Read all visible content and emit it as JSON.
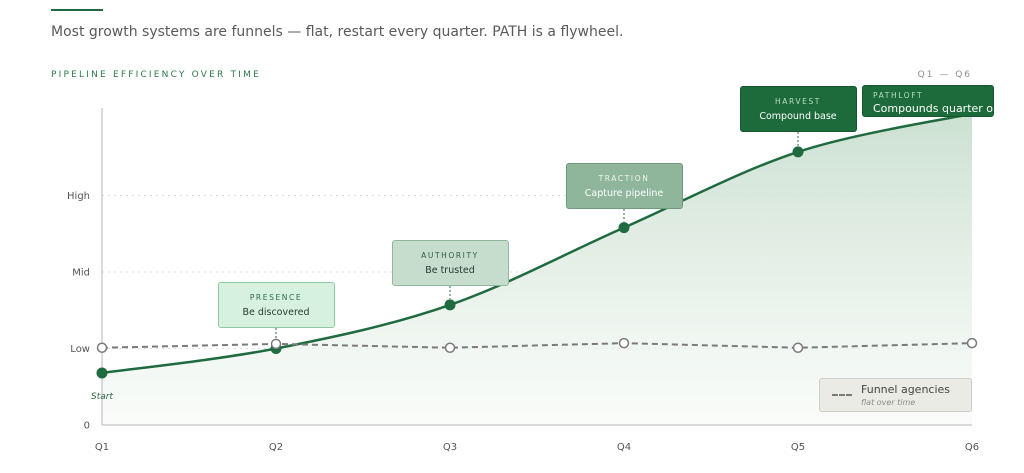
{
  "intro": "Most growth systems are funnels — flat, restart every quarter. PATH is a flywheel.",
  "colors": {
    "accent": "#1f6b3f",
    "flywheel": "#1f6b3f",
    "funnel": "#7a7a7a",
    "area": "#d3e5d8"
  },
  "chart_data": {
    "type": "line",
    "title": "PIPELINE EFFICIENCY OVER TIME",
    "range_label": "Q1 — Q6",
    "categories": [
      "Q1",
      "Q2",
      "Q3",
      "Q4",
      "Q5",
      "Q6"
    ],
    "y_ticks": [
      {
        "label": "0",
        "value": 0
      },
      {
        "label": "Low",
        "value": 1
      },
      {
        "label": "Mid",
        "value": 2
      },
      {
        "label": "High",
        "value": 3
      }
    ],
    "ylim": [
      0,
      3.5
    ],
    "grid": true,
    "start_label": "Start",
    "series": [
      {
        "key": "flywheel",
        "values": [
          0.68,
          1.0,
          1.57,
          2.58,
          3.57,
          4.07
        ],
        "style": "solid",
        "area": true,
        "markers": [
          "filled",
          "filled",
          "filled",
          "filled",
          "filled",
          "none"
        ]
      },
      {
        "key": "funnel",
        "name": "Funnel agencies",
        "note": "flat over time",
        "values": [
          1.01,
          1.06,
          1.01,
          1.07,
          1.01,
          1.07
        ],
        "style": "dashed",
        "markers": [
          "hollow",
          "hollow",
          "hollow",
          "hollow",
          "hollow",
          "hollow"
        ]
      }
    ],
    "annotations": [
      {
        "stage": "PRESENCE",
        "text": "Be discovered",
        "category": "Q2"
      },
      {
        "stage": "AUTHORITY",
        "text": "Be trusted",
        "category": "Q3"
      },
      {
        "stage": "TRACTION",
        "text": "Capture pipeline",
        "category": "Q4"
      },
      {
        "stage": "HARVEST",
        "text": "Compound base",
        "category": "Q5"
      },
      {
        "stage": "PATHLOFT",
        "text": "Compounds quarter on",
        "category": "Q6"
      }
    ],
    "legend": {
      "placement": "bottom-right",
      "name": "Funnel agencies",
      "note": "flat over time"
    }
  }
}
